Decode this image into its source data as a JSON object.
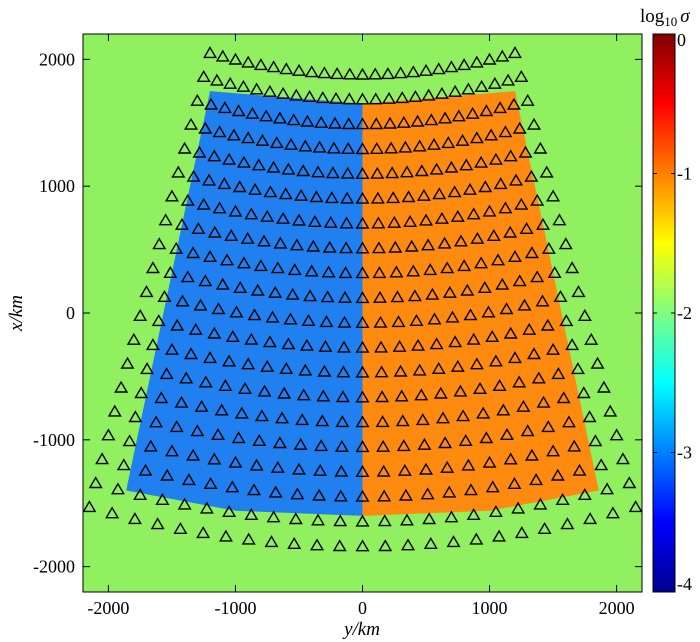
{
  "chart_data": {
    "type": "heatmap",
    "title": "",
    "xlabel": "y/km",
    "ylabel": "x/km",
    "xlim": [
      -2200,
      2200
    ],
    "ylim": [
      -2200,
      2200
    ],
    "x_ticks": [
      -2000,
      -1000,
      0,
      1000,
      2000
    ],
    "y_ticks": [
      -2000,
      -1000,
      0,
      1000,
      2000
    ],
    "x_tick_labels": [
      "-2000",
      "-1000",
      "0",
      "1000",
      "2000"
    ],
    "y_tick_labels": [
      "-2000",
      "-1000",
      "0",
      "1000",
      "2000"
    ],
    "background": {
      "log10_sigma": -2,
      "color": "#90F060"
    },
    "regions": [
      {
        "name": "",
        "log10_sigma": -3,
        "color": "#2080F0",
        "polygon": [
          [
            0,
            1650
          ],
          [
            -1200,
            1750
          ],
          [
            -1860,
            -1400
          ],
          [
            -1000,
            -1560
          ],
          [
            0,
            -1600
          ]
        ]
      },
      {
        "name": "",
        "log10_sigma": -1,
        "color": "#FF8A10",
        "polygon": [
          [
            0,
            1650
          ],
          [
            1200,
            1750
          ],
          [
            1860,
            -1400
          ],
          [
            1000,
            -1560
          ],
          [
            0,
            -1600
          ]
        ]
      }
    ],
    "stations": {
      "marker": "triangle",
      "rows": 20,
      "cols": 25,
      "top": {
        "y_half_width": 1200,
        "x_center": 1880,
        "x_edge": 2050
      },
      "bottom": {
        "y_half_width": 2150,
        "x_center": -1840,
        "x_edge": -1530
      }
    },
    "colorbar": {
      "title": "log10 σ",
      "title_base": "log",
      "title_sub": "10",
      "title_var": "σ",
      "min": -4,
      "max": 0,
      "ticks": [
        0,
        -1,
        -2,
        -3,
        -4
      ],
      "tick_labels": [
        "0",
        "-1",
        "-2",
        "-3",
        "-4"
      ],
      "colormap": "jet"
    }
  }
}
